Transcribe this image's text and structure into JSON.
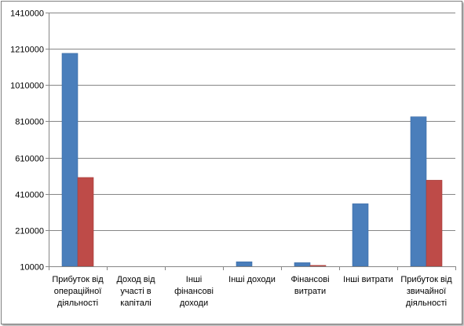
{
  "chart_data": {
    "type": "bar",
    "categories": [
      [
        "Прибуток від",
        "операційної",
        "діяльності"
      ],
      [
        "Доход від",
        "участі в",
        "капіталі"
      ],
      [
        "Інші",
        "фінансові",
        "доходи"
      ],
      [
        "Інші доходи"
      ],
      [
        "Фінансові",
        "витрати"
      ],
      [
        "Інші витрати"
      ],
      [
        "Прибуток від",
        "звичайної",
        "діяльності"
      ]
    ],
    "series": [
      {
        "values": [
          1185000,
          null,
          null,
          35000,
          30000,
          355000,
          835000
        ],
        "color": "#4a7ebb"
      },
      {
        "values": [
          500000,
          null,
          null,
          null,
          15000,
          null,
          485000
        ],
        "color": "#be4b48"
      }
    ],
    "ylim": [
      10000,
      1410000
    ],
    "yticks": [
      10000,
      210000,
      410000,
      610000,
      810000,
      1010000,
      1210000,
      1410000
    ],
    "grid": true,
    "legend": "none"
  }
}
